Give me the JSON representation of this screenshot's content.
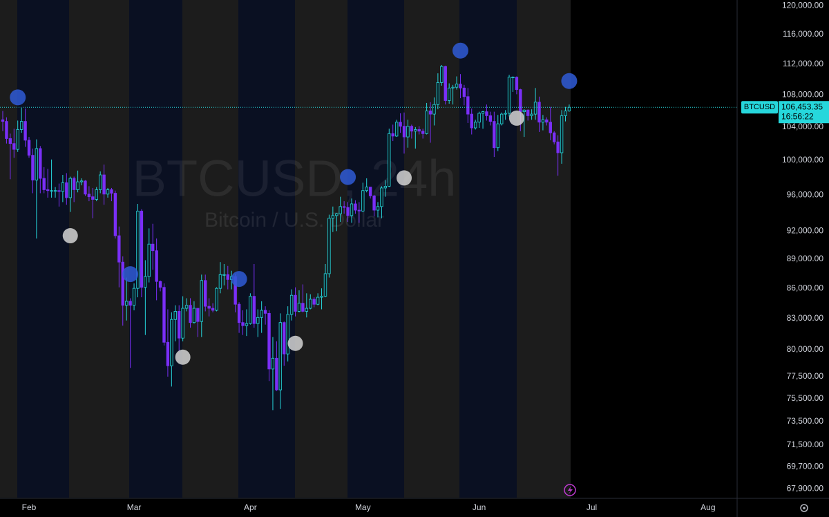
{
  "chart_data": {
    "type": "candlestick",
    "watermark": {
      "title": "BTCUSD, 24h",
      "subtitle": "Bitcoin / U.S. Dollar"
    },
    "symbol": "BTCUSD",
    "last_price": {
      "value": 106453.35,
      "label": "106,453.35"
    },
    "countdown": "16:56:22",
    "log_scale": true,
    "grid": false,
    "up_color": "#26d7dc",
    "down_color": "#7a2ff7",
    "high_marker_color": "#2f5bd6",
    "low_marker_color": "#d4d4d4",
    "ylim": [
      67200,
      120800
    ],
    "yticks": [
      {
        "value": 120000,
        "label": "120,000.00"
      },
      {
        "value": 116000,
        "label": "116,000.00"
      },
      {
        "value": 112000,
        "label": "112,000.00"
      },
      {
        "value": 108000,
        "label": "108,000.00"
      },
      {
        "value": 104000,
        "label": "104,000.00"
      },
      {
        "value": 100000,
        "label": "100,000.00"
      },
      {
        "value": 96000,
        "label": "96,000.00"
      },
      {
        "value": 92000,
        "label": "92,000.00"
      },
      {
        "value": 89000,
        "label": "89,000.00"
      },
      {
        "value": 86000,
        "label": "86,000.00"
      },
      {
        "value": 83000,
        "label": "83,000.00"
      },
      {
        "value": 80000,
        "label": "80,000.00"
      },
      {
        "value": 77500,
        "label": "77,500.00"
      },
      {
        "value": 75500,
        "label": "75,500.00"
      },
      {
        "value": 73500,
        "label": "73,500.00"
      },
      {
        "value": 71500,
        "label": "71,500.00"
      },
      {
        "value": 69700,
        "label": "69,700.00"
      },
      {
        "value": 67900,
        "label": "67,900.00"
      }
    ],
    "categories": [
      null,
      null,
      null,
      null,
      null,
      null,
      null,
      "Feb",
      null,
      null,
      null,
      null,
      null,
      null,
      null,
      null,
      null,
      null,
      null,
      null,
      null,
      null,
      null,
      null,
      null,
      null,
      null,
      null,
      null,
      null,
      null,
      null,
      null,
      null,
      null,
      "Mar",
      null,
      null,
      null,
      null,
      null,
      null,
      null,
      null,
      null,
      null,
      null,
      null,
      null,
      null,
      null,
      null,
      null,
      null,
      null,
      null,
      null,
      null,
      null,
      null,
      null,
      null,
      null,
      null,
      null,
      null,
      "Apr",
      null,
      null,
      null,
      null,
      null,
      null,
      null,
      null,
      null,
      null,
      null,
      null,
      null,
      null,
      null,
      null,
      null,
      null,
      null,
      null,
      null,
      null,
      null,
      null,
      null,
      null,
      null,
      null,
      null,
      "May",
      null,
      null,
      null,
      null,
      null,
      null,
      null,
      null,
      null,
      null,
      null,
      null,
      null,
      null,
      null,
      null,
      null,
      null,
      null,
      null,
      null,
      null,
      null,
      null,
      null,
      null,
      null,
      null,
      null,
      null,
      "Jun",
      null,
      null,
      null,
      null,
      null,
      null,
      null,
      null,
      null,
      null,
      null,
      null,
      null,
      null,
      null,
      null,
      null,
      null,
      null,
      null,
      null,
      null,
      null,
      null,
      null,
      null,
      null,
      null,
      null,
      "Jul",
      null,
      null,
      null,
      null,
      null,
      null,
      null,
      null,
      null,
      null,
      null,
      null,
      null,
      null,
      null,
      null,
      null,
      null,
      null,
      null,
      null,
      null,
      null,
      null,
      null,
      null,
      null,
      null,
      null,
      null,
      "Aug",
      null
    ],
    "open": [
      104900,
      104700,
      102600,
      102000,
      101300,
      103700,
      104700,
      102400,
      100600,
      97700,
      101400,
      97900,
      96600,
      96500,
      96500,
      96500,
      96400,
      97400,
      95700,
      97900,
      96600,
      97500,
      97600,
      96100,
      95800,
      95500,
      96600,
      98300,
      96100,
      96600,
      96200,
      91500,
      88700,
      84300,
      84700,
      84300,
      86000,
      94200,
      86100,
      87200,
      90600,
      89900,
      86700,
      86100,
      80700,
      78500,
      82900,
      83700,
      81100,
      84000,
      84300,
      82600,
      84000,
      82700,
      86800,
      84200,
      84000,
      83800,
      86000,
      87400,
      87400,
      86900,
      87200,
      84400,
      82600,
      82300,
      82500,
      85200,
      82500,
      83100,
      83800,
      83500,
      78200,
      79200,
      76300,
      82600,
      79600,
      83400,
      85300,
      83700,
      84500,
      83700,
      84000,
      84900,
      84400,
      85100,
      85200,
      87500,
      93400,
      93700,
      93900,
      94700,
      94600,
      93700,
      95000,
      94300,
      94200,
      96500,
      96900,
      95900,
      94300,
      94700,
      96800,
      97000,
      103200,
      102900,
      104600,
      104100,
      102800,
      104100,
      103500,
      103700,
      103500,
      103200,
      106000,
      105600,
      106800,
      109600,
      111700,
      107300,
      108900,
      109000,
      109400,
      108900,
      107800,
      105600,
      103900,
      104600,
      105700,
      105900,
      105400,
      104700,
      101500,
      104400,
      105600,
      105700,
      110300,
      110300,
      108700,
      105900,
      106100,
      105400,
      105600,
      107100,
      104600,
      104900,
      104600,
      103300,
      102200,
      100900,
      105400,
      106000,
      null,
      null,
      null,
      null,
      null,
      null,
      null,
      null,
      null,
      null,
      null,
      null,
      null,
      null,
      null,
      null,
      null,
      null,
      null,
      null,
      null,
      null,
      null,
      null,
      null,
      null,
      null,
      null,
      null,
      null,
      null,
      null,
      null,
      null,
      null,
      null,
      null,
      null
    ],
    "high": [
      106000,
      105200,
      103200,
      103800,
      104800,
      106400,
      106300,
      102800,
      101400,
      102500,
      101700,
      99200,
      99000,
      100100,
      96900,
      97300,
      98300,
      98500,
      98100,
      98100,
      98800,
      97900,
      97700,
      97000,
      96800,
      96900,
      98700,
      99500,
      96800,
      96800,
      96500,
      92500,
      89300,
      87100,
      85000,
      86500,
      95000,
      94400,
      88900,
      92300,
      92800,
      91200,
      86800,
      86500,
      83900,
      83600,
      84300,
      84300,
      85200,
      85000,
      85000,
      84700,
      84000,
      87400,
      87400,
      85000,
      84500,
      86100,
      88700,
      88500,
      88300,
      87800,
      87500,
      84600,
      83800,
      83900,
      85500,
      88500,
      83900,
      84700,
      84200,
      83800,
      81200,
      80800,
      83500,
      82700,
      84200,
      85900,
      86100,
      85800,
      86400,
      85500,
      85400,
      85100,
      85500,
      86000,
      88500,
      93800,
      94700,
      94000,
      95800,
      95300,
      95200,
      95600,
      95400,
      95200,
      97400,
      97900,
      96900,
      96000,
      95200,
      97000,
      97700,
      103800,
      104300,
      104900,
      105700,
      105800,
      104900,
      104300,
      104000,
      104100,
      103800,
      107000,
      107100,
      107700,
      110800,
      111900,
      111800,
      109500,
      109300,
      110400,
      110700,
      109300,
      108900,
      106300,
      104900,
      105900,
      106000,
      106800,
      105900,
      105900,
      105500,
      105800,
      106100,
      110600,
      110400,
      110400,
      108800,
      106200,
      106200,
      106200,
      108900,
      107800,
      105500,
      105200,
      106500,
      103500,
      103000,
      106100,
      106500,
      106800,
      null,
      null,
      null,
      null,
      null,
      null,
      null,
      null,
      null,
      null,
      null,
      null,
      null,
      null,
      null,
      null,
      null,
      null,
      null,
      null,
      null,
      null,
      null,
      null,
      null,
      null,
      null,
      null,
      null,
      null,
      null,
      null,
      null,
      null,
      null,
      null,
      null,
      null
    ],
    "low": [
      103500,
      102000,
      97800,
      100300,
      101000,
      103300,
      101600,
      100300,
      96200,
      91200,
      96200,
      96200,
      95700,
      95700,
      95700,
      94700,
      95200,
      94900,
      94100,
      95200,
      96300,
      97100,
      95900,
      95300,
      93400,
      95300,
      96200,
      94900,
      95700,
      95300,
      91200,
      86100,
      82300,
      82800,
      78300,
      83800,
      85100,
      85100,
      81400,
      86600,
      87900,
      84800,
      85700,
      80400,
      77500,
      76600,
      80800,
      79900,
      80800,
      83700,
      82100,
      82500,
      81200,
      81200,
      83700,
      83200,
      83600,
      83700,
      85500,
      86300,
      85900,
      85900,
      83600,
      81600,
      81400,
      81300,
      82400,
      82100,
      81200,
      81600,
      82400,
      77100,
      74500,
      76200,
      74600,
      78500,
      78900,
      82800,
      83200,
      83600,
      83600,
      83100,
      83900,
      84100,
      84300,
      83900,
      85100,
      87100,
      91900,
      92000,
      93000,
      93900,
      93000,
      92900,
      93900,
      92900,
      94100,
      96300,
      95600,
      93600,
      93500,
      93400,
      95800,
      96900,
      102300,
      102800,
      103300,
      100800,
      101500,
      102600,
      101400,
      103100,
      102600,
      103100,
      102100,
      104200,
      106200,
      109200,
      106800,
      106900,
      106800,
      108700,
      107600,
      106700,
      104500,
      103100,
      103700,
      103900,
      103800,
      104800,
      104200,
      100400,
      101100,
      104200,
      104900,
      105300,
      108400,
      108100,
      103500,
      102800,
      104800,
      104900,
      104900,
      103400,
      103600,
      104200,
      102400,
      101900,
      98200,
      99600,
      104700,
      105900,
      null,
      null,
      null,
      null,
      null,
      null,
      null,
      null,
      null,
      null,
      null,
      null,
      null,
      null,
      null,
      null,
      null,
      null,
      null,
      null,
      null,
      null,
      null,
      null,
      null,
      null,
      null,
      null,
      null,
      null,
      null,
      null,
      null,
      null,
      null,
      null,
      null,
      null
    ],
    "close": [
      104700,
      102600,
      102000,
      101300,
      103700,
      104700,
      102400,
      100600,
      97700,
      101400,
      97900,
      96600,
      96500,
      96500,
      96500,
      96400,
      97400,
      95700,
      97900,
      96600,
      97500,
      97600,
      96100,
      95800,
      95500,
      96600,
      98300,
      96100,
      96600,
      96200,
      91500,
      88700,
      84300,
      84700,
      84300,
      86000,
      94200,
      86100,
      87200,
      90600,
      89900,
      86700,
      86100,
      80700,
      78500,
      82900,
      83700,
      81100,
      84000,
      84300,
      82600,
      84000,
      82700,
      86800,
      84200,
      84000,
      83800,
      86000,
      87400,
      87400,
      86900,
      87200,
      84400,
      82600,
      82300,
      82500,
      85200,
      82500,
      83100,
      83800,
      83500,
      78200,
      79200,
      76300,
      82600,
      79600,
      83400,
      85300,
      83700,
      84500,
      83700,
      84000,
      84900,
      84400,
      85100,
      85200,
      87500,
      93400,
      93700,
      93900,
      94700,
      94600,
      93700,
      95000,
      94300,
      94200,
      96500,
      96900,
      95900,
      94300,
      94700,
      96800,
      97000,
      103200,
      102900,
      104600,
      104100,
      102800,
      104100,
      103500,
      103700,
      103500,
      103200,
      106000,
      105600,
      106800,
      109600,
      111700,
      107300,
      108900,
      109000,
      109400,
      108900,
      107800,
      105600,
      103900,
      104600,
      105700,
      105900,
      105400,
      104700,
      101500,
      104400,
      105600,
      105700,
      110300,
      110300,
      108700,
      105900,
      106100,
      105400,
      105600,
      107100,
      104600,
      104900,
      104600,
      103300,
      102200,
      100900,
      105400,
      106000,
      106450,
      null,
      null,
      null,
      null,
      null,
      null,
      null,
      null,
      null,
      null,
      null,
      null,
      null,
      null,
      null,
      null,
      null,
      null,
      null,
      null,
      null,
      null,
      null,
      null,
      null,
      null,
      null,
      null,
      null,
      null,
      null,
      null,
      null,
      null,
      null,
      null,
      null,
      null
    ],
    "high_markers": [
      null,
      null,
      null,
      null,
      107700,
      null,
      null,
      null,
      null,
      null,
      null,
      null,
      null,
      null,
      null,
      null,
      null,
      null,
      null,
      null,
      null,
      null,
      null,
      null,
      null,
      null,
      null,
      null,
      null,
      null,
      null,
      null,
      null,
      null,
      87450,
      null,
      null,
      null,
      null,
      null,
      null,
      null,
      null,
      null,
      null,
      null,
      null,
      null,
      null,
      null,
      null,
      null,
      null,
      null,
      null,
      null,
      null,
      null,
      null,
      null,
      null,
      null,
      null,
      86950,
      null,
      null,
      null,
      null,
      null,
      null,
      null,
      null,
      null,
      null,
      null,
      null,
      null,
      null,
      null,
      null,
      null,
      null,
      null,
      null,
      null,
      null,
      null,
      null,
      null,
      null,
      null,
      null,
      98050,
      null,
      null,
      null,
      null,
      null,
      null,
      null,
      null,
      null,
      null,
      null,
      null,
      null,
      null,
      null,
      null,
      null,
      null,
      null,
      null,
      null,
      null,
      null,
      null,
      null,
      null,
      null,
      null,
      null,
      113800,
      null,
      null,
      null,
      null,
      null,
      null,
      null,
      null,
      null,
      null,
      null,
      null,
      null,
      null,
      null,
      null,
      null,
      null,
      null,
      null,
      null,
      null,
      null,
      null,
      null,
      null,
      null,
      null,
      109800,
      null,
      null,
      null,
      null,
      null,
      null,
      null,
      null,
      null,
      null,
      null,
      null,
      null,
      null,
      null,
      null,
      null,
      null,
      null,
      null,
      null,
      null,
      null,
      null,
      null,
      null,
      null,
      null,
      null,
      null,
      null,
      null,
      null,
      null,
      null,
      null,
      null,
      null
    ],
    "low_markers": [
      null,
      null,
      null,
      null,
      null,
      null,
      null,
      null,
      null,
      null,
      null,
      null,
      null,
      null,
      null,
      null,
      null,
      null,
      91500,
      null,
      null,
      null,
      null,
      null,
      null,
      null,
      null,
      null,
      null,
      null,
      null,
      null,
      null,
      null,
      null,
      null,
      null,
      null,
      null,
      null,
      null,
      null,
      null,
      null,
      null,
      null,
      null,
      null,
      79300,
      null,
      null,
      null,
      null,
      null,
      null,
      null,
      null,
      null,
      null,
      null,
      null,
      null,
      null,
      null,
      null,
      null,
      null,
      null,
      null,
      null,
      null,
      null,
      null,
      null,
      null,
      null,
      null,
      null,
      80600,
      null,
      null,
      null,
      null,
      null,
      null,
      null,
      null,
      null,
      null,
      null,
      null,
      null,
      null,
      null,
      null,
      null,
      null,
      null,
      null,
      null,
      null,
      null,
      null,
      null,
      null,
      null,
      null,
      97950,
      null,
      null,
      null,
      null,
      null,
      null,
      null,
      null,
      null,
      null,
      null,
      null,
      null,
      null,
      null,
      null,
      null,
      null,
      null,
      null,
      null,
      null,
      null,
      null,
      null,
      null,
      null,
      null,
      null,
      105100,
      null,
      null,
      null,
      null,
      null,
      null,
      null,
      null,
      null,
      null,
      null,
      null,
      null,
      null,
      null,
      null,
      null,
      null,
      null,
      null,
      null,
      null,
      null,
      null,
      null,
      null,
      null,
      null,
      null,
      null,
      null,
      null,
      null,
      null,
      null,
      null,
      null,
      null,
      null,
      null,
      null,
      null,
      null,
      null,
      null,
      null,
      null,
      null,
      null,
      null,
      null,
      null
    ]
  }
}
